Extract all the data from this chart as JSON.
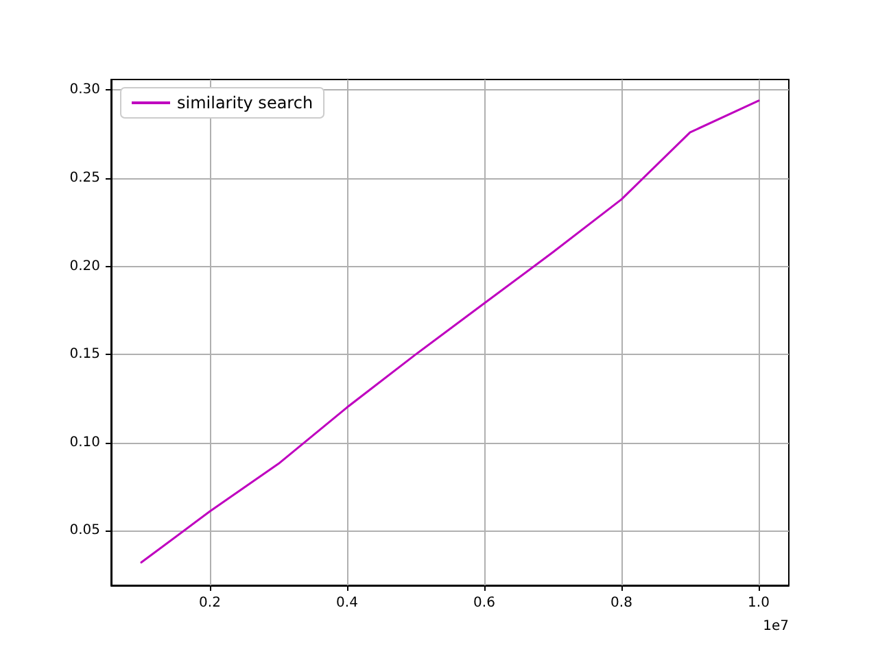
{
  "chart_data": {
    "type": "line",
    "x": [
      0.1,
      0.2,
      0.3,
      0.4,
      0.5,
      0.6,
      0.7,
      0.8,
      0.9,
      1.0
    ],
    "series": [
      {
        "name": "similarity search",
        "color": "#bf00bf",
        "values": [
          0.032,
          0.061,
          0.088,
          0.12,
          0.15,
          0.179,
          0.208,
          0.238,
          0.276,
          0.294
        ]
      }
    ],
    "xlim": [
      0.056,
      1.044
    ],
    "xticks": [
      0.2,
      0.4,
      0.6,
      0.8,
      {
        "value": 1.0,
        "label": "1.0"
      }
    ],
    "ylim": [
      0.019,
      0.306
    ],
    "yticks": [
      0.05,
      {
        "value": 0.1,
        "label": "0.10"
      },
      0.15,
      {
        "value": 0.2,
        "label": "0.20"
      },
      0.25,
      {
        "value": 0.3,
        "label": "0.30"
      }
    ],
    "annotations": [
      "1e7"
    ],
    "grid": true,
    "legend": "top left",
    "marker": "none",
    "line_style": "solid"
  }
}
